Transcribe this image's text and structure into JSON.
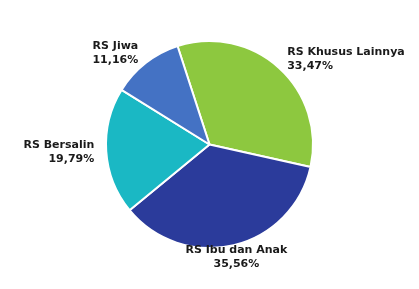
{
  "chart_data": {
    "type": "pie",
    "categories": [
      "RS Khusus Lainnya",
      "RS Ibu dan Anak",
      "RS Bersalin",
      "RS Jiwa"
    ],
    "values": [
      33.47,
      35.56,
      19.79,
      11.16
    ],
    "value_labels": [
      "33,47%",
      "35,56%",
      "19,79%",
      "11,16%"
    ],
    "colors": [
      "#8DC83F",
      "#2B3B9B",
      "#1AB8C4",
      "#4472C4"
    ],
    "data_labels": true
  }
}
